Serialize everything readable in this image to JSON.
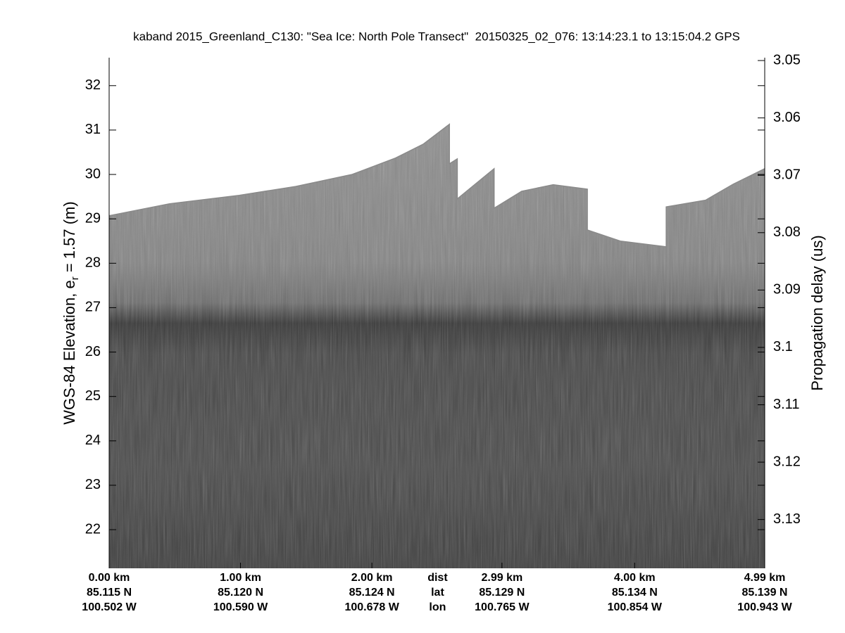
{
  "chart_data": {
    "type": "echogram",
    "title": "kaband 2015_Greenland_C130: \"Sea Ice: North Pole Transect\"  20150325_02_076: 13:14:23.1 to 13:15:04.2 GPS",
    "ylabel": {
      "text_before": "WGS-84 Elevation, e",
      "subscript": "r",
      "text_after": " = 1.57 (m)"
    },
    "y2label": "Propagation delay (us)",
    "xlim": [
      0,
      4.99
    ],
    "ylim": [
      21.13,
      32.63
    ],
    "y2lim": [
      3.0495,
      3.1385
    ],
    "yticks": [
      22,
      23,
      24,
      25,
      26,
      27,
      28,
      29,
      30,
      31,
      32
    ],
    "y2ticks": [
      3.05,
      3.06,
      3.07,
      3.08,
      3.09,
      3.1,
      3.11,
      3.12,
      3.13
    ],
    "xticks": [
      {
        "value": 0,
        "label": "0.00 km"
      },
      {
        "value": 1.0,
        "label": "1.00 km"
      },
      {
        "value": 2.0,
        "label": "2.00 km"
      },
      {
        "value": 2.99,
        "label": "2.99 km"
      },
      {
        "value": 4.0,
        "label": "4.00 km"
      },
      {
        "value": 4.99,
        "label": "4.99 km"
      }
    ],
    "lat_labels": [
      "85.115 N",
      "85.120 N",
      "85.124 N",
      "85.129 N",
      "85.134 N",
      "85.139 N"
    ],
    "lon_labels": [
      "100.502 W",
      "100.590 W",
      "100.678 W",
      "100.765 W",
      "100.854 W",
      "100.943 W"
    ],
    "row_labels": [
      "dist",
      "lat",
      "lon"
    ],
    "row_labels_x": 2.5,
    "surface": {
      "color": "#8a8a8a",
      "x": [
        0,
        0.46,
        0.99,
        1.42,
        1.85,
        2.18,
        2.39,
        2.59,
        2.59,
        2.65,
        2.65,
        2.93,
        2.93,
        3.14,
        3.38,
        3.64,
        3.64,
        3.89,
        4.24,
        4.24,
        4.54,
        4.75,
        4.99
      ],
      "values": [
        29.07,
        29.34,
        29.53,
        29.73,
        30.0,
        30.37,
        30.68,
        31.13,
        30.24,
        30.35,
        29.45,
        30.13,
        29.24,
        29.62,
        29.77,
        29.67,
        28.75,
        28.5,
        28.37,
        29.27,
        29.42,
        29.78,
        30.13
      ]
    }
  }
}
